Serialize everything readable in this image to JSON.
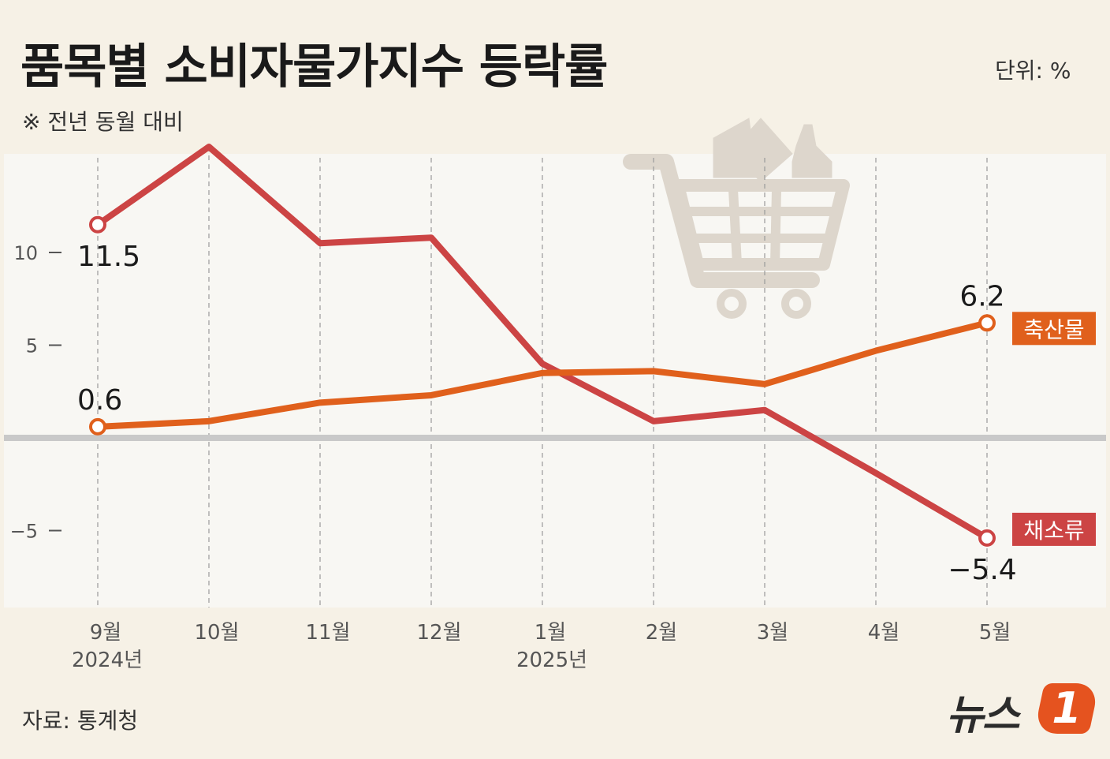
{
  "header": {
    "title": "품목별 소비자물가지수 등락률",
    "subtitle": "※ 전년 동월 대비",
    "unit": "단위: %"
  },
  "footer": {
    "source": "자료: 통계청",
    "logo_text": "뉴스",
    "logo_mark": "1"
  },
  "colors": {
    "background": "#f6f1e6",
    "plot_area": "#f8f7f3",
    "vegetables": "#cc4444",
    "livestock": "#e0601c",
    "zero_line": "#c9c9c9",
    "cart_icon": "#ddd6cc"
  },
  "icons": {
    "cart": "shopping-cart-icon"
  },
  "chart_data": {
    "type": "line",
    "title": "품목별 소비자물가지수 등락률",
    "subtitle": "※ 전년 동월 대비",
    "unit": "%",
    "categories": [
      "9월",
      "10월",
      "11월",
      "12월",
      "1월",
      "2월",
      "3월",
      "4월",
      "5월"
    ],
    "year_labels": [
      {
        "index": 0,
        "label": "2024년"
      },
      {
        "index": 4,
        "label": "2025년"
      }
    ],
    "yticks": [
      {
        "value": 10,
        "label": "10"
      },
      {
        "value": 5,
        "label": "5"
      },
      {
        "value": -5,
        "label": "−5"
      }
    ],
    "ylim": [
      -9,
      16
    ],
    "grid": "vertical dashed lines at each month",
    "series": [
      {
        "name": "채소류",
        "color": "#cc4444",
        "values": [
          11.5,
          15.7,
          10.5,
          10.8,
          4.0,
          0.9,
          1.5,
          -1.9,
          -5.4
        ],
        "labels": [
          {
            "index": 0,
            "text": "11.5"
          },
          {
            "index": 8,
            "text": "−5.4"
          }
        ]
      },
      {
        "name": "축산물",
        "color": "#e0601c",
        "values": [
          0.6,
          0.9,
          1.9,
          2.3,
          3.5,
          3.6,
          2.9,
          4.7,
          6.2
        ],
        "labels": [
          {
            "index": 0,
            "text": "0.6"
          },
          {
            "index": 8,
            "text": "6.2"
          }
        ]
      }
    ]
  }
}
